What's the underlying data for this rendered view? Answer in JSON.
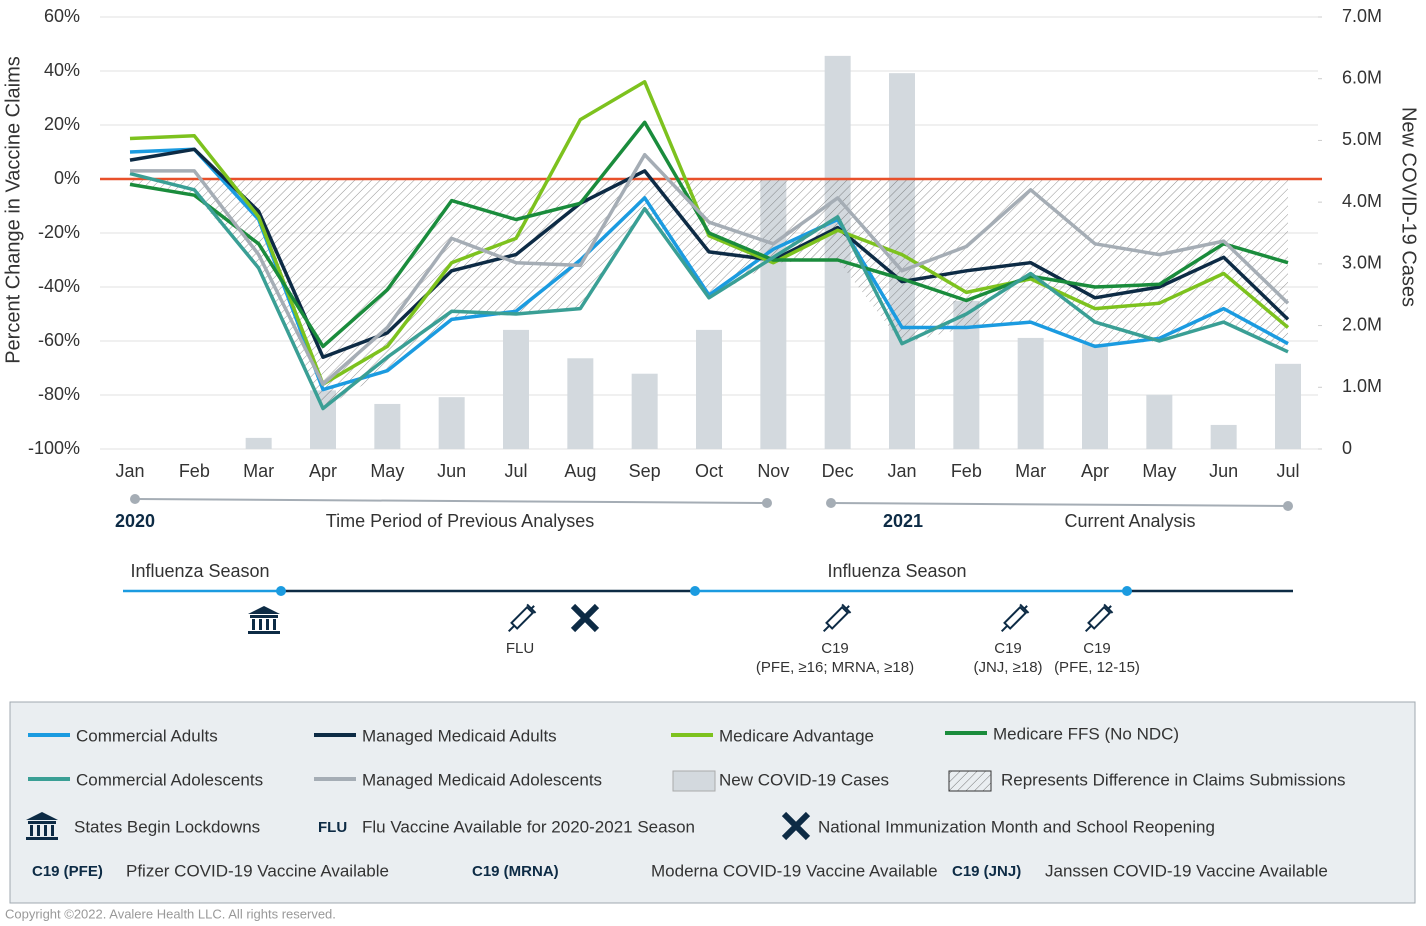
{
  "chart_data": {
    "type": "combo",
    "categories": [
      "Jan",
      "Feb",
      "Mar",
      "Apr",
      "May",
      "Jun",
      "Jul",
      "Aug",
      "Sep",
      "Oct",
      "Nov",
      "Dec",
      "Jan",
      "Feb",
      "Mar",
      "Apr",
      "May",
      "Jun",
      "Jul"
    ],
    "ylabel": "Percent Change in Vaccine Claims",
    "y2label": "New COVID-19 Cases",
    "ylim": [
      -100,
      60
    ],
    "yticks": [
      {
        "value": 60,
        "label": "60%"
      },
      {
        "value": 40,
        "label": "40%"
      },
      {
        "value": 20,
        "label": "20%"
      },
      {
        "value": 0,
        "label": "0%"
      },
      {
        "value": -20,
        "label": "-20%"
      },
      {
        "value": -40,
        "label": "-40%"
      },
      {
        "value": -60,
        "label": "-60%"
      },
      {
        "value": -80,
        "label": "-80%"
      },
      {
        "value": -100,
        "label": "-100%"
      }
    ],
    "y2lim": [
      0,
      7000000
    ],
    "y2ticks": [
      0,
      {
        "value": 1000000,
        "label": "1.0M"
      },
      {
        "value": 2000000,
        "label": "2.0M"
      },
      {
        "value": 3000000,
        "label": "3.0M"
      },
      {
        "value": 4000000,
        "label": "4.0M"
      },
      {
        "value": 5000000,
        "label": "5.0M"
      },
      {
        "value": 6000000,
        "label": "6.0M"
      },
      {
        "value": 7000000,
        "label": "7.0M"
      }
    ],
    "grid": true,
    "reference_line": {
      "value": 0,
      "color": "#e8502a"
    },
    "difference_area_label": "Represents Difference in Claims Submissions",
    "series": [
      {
        "name": "Commercial Adults",
        "type": "line",
        "color": "#1b9be0",
        "values": [
          10,
          11,
          -15,
          -78,
          -71,
          -52,
          -49,
          -30,
          -7,
          -43,
          -26,
          -15,
          -55,
          -55,
          -53,
          -62,
          -59,
          -48,
          -61
        ]
      },
      {
        "name": "Managed Medicaid Adults",
        "type": "line",
        "color": "#0d2b45",
        "values": [
          7,
          11,
          -12,
          -66,
          -57,
          -34,
          -28,
          -9,
          3,
          -27,
          -30,
          -18,
          -38,
          -34,
          -31,
          -44,
          -40,
          -29,
          -52
        ]
      },
      {
        "name": "Medicare Advantage",
        "type": "line",
        "color": "#7dc21e",
        "values": [
          15,
          16,
          -14,
          -76,
          -62,
          -31,
          -22,
          22,
          36,
          -21,
          -31,
          -19,
          -28,
          -42,
          -37,
          -48,
          -46,
          -35,
          -55
        ]
      },
      {
        "name": "Medicare FFS (No NDC)",
        "type": "line",
        "color": "#1a8c3c",
        "values": [
          -2,
          -6,
          -24,
          -62,
          -41,
          -8,
          -15,
          -9,
          21,
          -20,
          -30,
          -30,
          -37,
          -45,
          -36,
          -40,
          -39,
          -24,
          -31
        ]
      },
      {
        "name": "Commercial Adolescents",
        "type": "line",
        "color": "#3a9f95",
        "values": [
          2,
          -4,
          -33,
          -85,
          -66,
          -49,
          -50,
          -48,
          -11,
          -44,
          -29,
          -14,
          -61,
          -50,
          -35,
          -53,
          -60,
          -53,
          -64
        ]
      },
      {
        "name": "Managed Medicaid Adolescents",
        "type": "line",
        "color": "#a5adb5",
        "values": [
          3,
          3,
          -28,
          -76,
          -55,
          -22,
          -31,
          -32,
          9,
          -16,
          -24,
          -7,
          -34,
          -25,
          -4,
          -24,
          -28,
          -23,
          -46
        ]
      },
      {
        "name": "New COVID-19 Cases",
        "type": "bar",
        "axis": "y2",
        "color": "#d3d9de",
        "values": [
          0,
          0,
          180000,
          950000,
          730000,
          840000,
          1930000,
          1470000,
          1220000,
          1930000,
          4360000,
          6370000,
          6090000,
          2400000,
          1800000,
          1700000,
          880000,
          390000,
          1380000
        ]
      }
    ]
  },
  "timeline": {
    "year_2020": "2020",
    "previous": "Time Period of Previous Analyses",
    "year_2021": "2021",
    "current": "Current Analysis",
    "flu_1": "Influenza Season",
    "flu_2": "Influenza Season",
    "flu_label": "FLU",
    "c19_a": "C19",
    "c19_a_detail": "(PFE, ≥16; MRNA, ≥18)",
    "c19_b": "C19",
    "c19_b_detail": "(JNJ, ≥18)",
    "c19_c": "C19",
    "c19_c_detail": "(PFE, 12-15)"
  },
  "legend_notes": {
    "lockdowns": "States Begin Lockdowns",
    "flu_key": "FLU",
    "flu_text": "Flu Vaccine Available for 2020-2021 Season",
    "nim": "National Immunization Month and School Reopening",
    "pfe_key": "C19 (PFE)",
    "pfe_text": "Pfizer COVID-19 Vaccine Available",
    "mrna_key": "C19 (MRNA)",
    "mrna_text": "Moderna COVID-19 Vaccine Available",
    "jnj_key": "C19 (JNJ)",
    "jnj_text": "Janssen COVID-19 Vaccine Available"
  },
  "copyright": "Copyright ©2022. Avalere Health LLC. All rights reserved."
}
